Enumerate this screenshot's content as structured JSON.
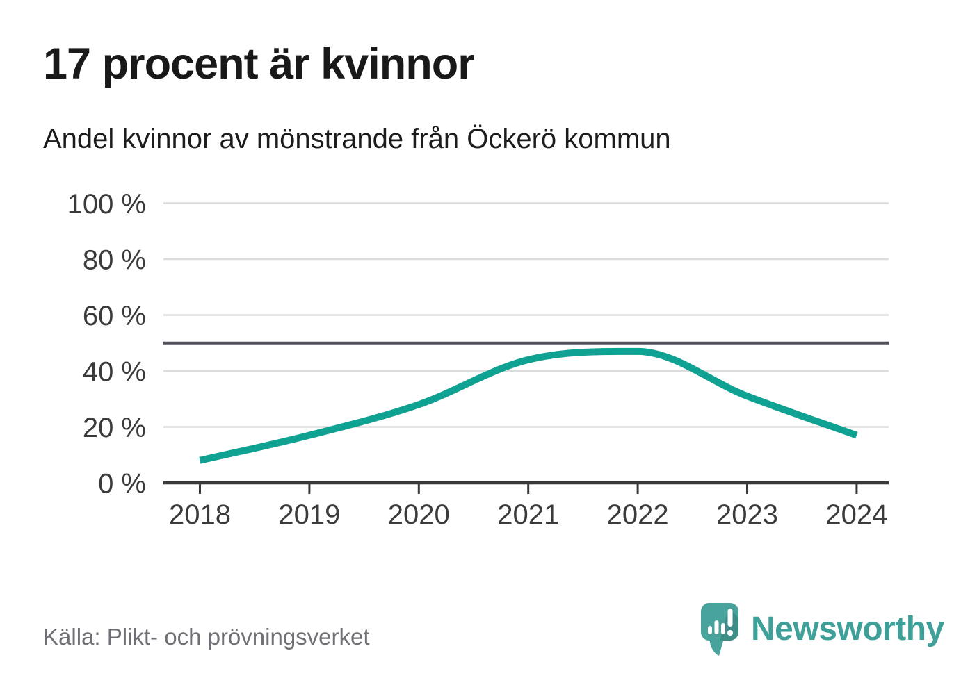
{
  "chart_data": {
    "type": "line",
    "title": "17 procent är kvinnor",
    "subtitle": "Andel kvinnor av mönstrande från Öckerö kommun",
    "categories": [
      "2018",
      "2019",
      "2020",
      "2021",
      "2022",
      "2023",
      "2024"
    ],
    "series": [
      {
        "name": "Andel kvinnor av mönstrande",
        "values": [
          8,
          17,
          28,
          44,
          47,
          31,
          17
        ]
      }
    ],
    "xlabel": "",
    "ylabel": "",
    "ylim": [
      0,
      100
    ],
    "yticks": [
      0,
      20,
      40,
      60,
      80,
      100
    ],
    "ytick_suffix": " %",
    "reference_line": 50,
    "grid": true,
    "legend_position": "none",
    "line_color": "#0fa192",
    "reference_line_color": "#50515a",
    "grid_color": "#dcdcdc",
    "axis_color": "#38383a",
    "tick_label_color": "#3b3b3b"
  },
  "source": {
    "label": "Källa: Plikt- och prövningsverket"
  },
  "logo": {
    "text": "Newsworthy",
    "color": "#3f9f99",
    "icon": "newsworthy-speech-bubble-barchart-icon"
  }
}
